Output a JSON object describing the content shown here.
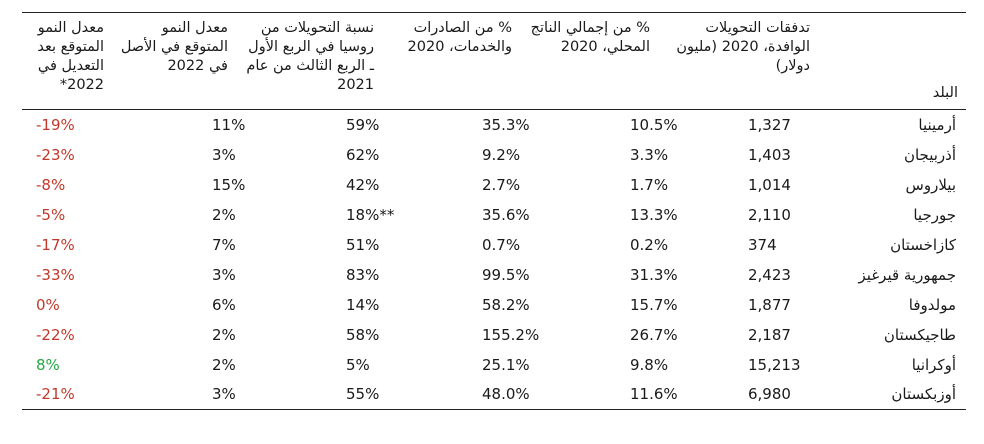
{
  "headers": {
    "country": "البلد",
    "remittances": "تدفقات التحويلات الوافدة، 2020 (مليون دولار)",
    "gdp_share": "% من إجمالي الناتج المحلي، 2020",
    "exports_share": "% من  الصادرات والخدمات، 2020",
    "russia_share": "نسبة التحويلات من روسيا في الربع الأول ـ الربع الثالث من عام 2021",
    "growth_original": "معدل النمو المتوقع في الأصل في 2022",
    "growth_revised": "معدل النمو المتوقع بعد التعديل في 2022*"
  },
  "rows": [
    {
      "country": "أرمينيا",
      "remittances": "1,327",
      "gdp": "10.5%",
      "exports": "35.3%",
      "russia": "59%",
      "orig": "11%",
      "revised": "-19%",
      "revised_color": "#c0392b"
    },
    {
      "country": "أذربيجان",
      "remittances": "1,403",
      "gdp": "3.3%",
      "exports": "9.2%",
      "russia": "62%",
      "orig": "3%",
      "revised": "-23%",
      "revised_color": "#c0392b"
    },
    {
      "country": "بيلاروس",
      "remittances": "1,014",
      "gdp": "1.7%",
      "exports": "2.7%",
      "russia": "42%",
      "orig": "15%",
      "revised": "-8%",
      "revised_color": "#c0392b"
    },
    {
      "country": "جورجيا",
      "remittances": "2,110",
      "gdp": "13.3%",
      "exports": "35.6%",
      "russia": "18%**",
      "orig": "2%",
      "revised": "-5%",
      "revised_color": "#c0392b"
    },
    {
      "country": "كازاخستان",
      "remittances": "374",
      "gdp": "0.2%",
      "exports": "0.7%",
      "russia": "51%",
      "orig": "7%",
      "revised": "-17%",
      "revised_color": "#c0392b"
    },
    {
      "country": "جمهورية قيرغيز",
      "remittances": "2,423",
      "gdp": "31.3%",
      "exports": "99.5%",
      "russia": "83%",
      "orig": "3%",
      "revised": "-33%",
      "revised_color": "#c0392b"
    },
    {
      "country": "مولدوفا",
      "remittances": "1,877",
      "gdp": "15.7%",
      "exports": "58.2%",
      "russia": "14%",
      "orig": "6%",
      "revised": "0%",
      "revised_color": "#c0392b"
    },
    {
      "country": "طاجيكستان",
      "remittances": "2,187",
      "gdp": "26.7%",
      "exports": "155.2%",
      "russia": "58%",
      "orig": "2%",
      "revised": "-22%",
      "revised_color": "#c0392b"
    },
    {
      "country": "أوكرانيا",
      "remittances": "15,213",
      "gdp": "9.8%",
      "exports": "25.1%",
      "russia": "5%",
      "orig": "2%",
      "revised": "8%",
      "revised_color": "#27a844"
    },
    {
      "country": "أوزبكستان",
      "remittances": "6,980",
      "gdp": "11.6%",
      "exports": "48.0%",
      "russia": "55%",
      "orig": "3%",
      "revised": "-21%",
      "revised_color": "#c0392b"
    }
  ]
}
